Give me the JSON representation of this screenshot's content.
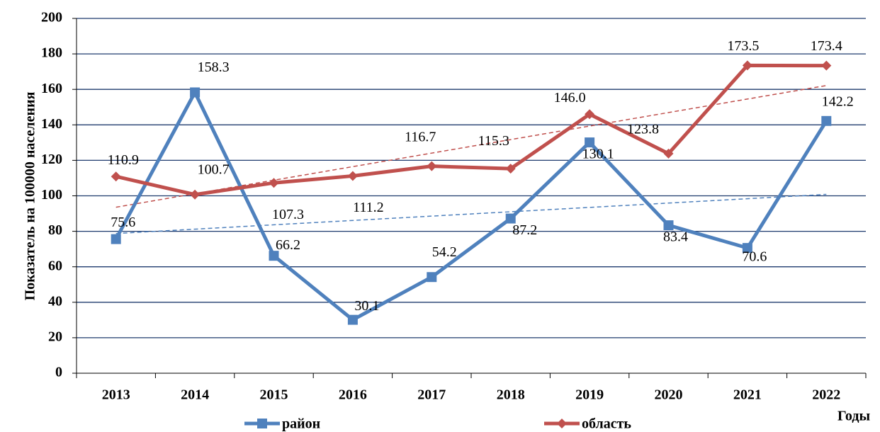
{
  "chart_data": {
    "type": "line",
    "y_label": "Показатель на 100000 населения",
    "x_label": "Годы",
    "categories": [
      "2013",
      "2014",
      "2015",
      "2016",
      "2017",
      "2018",
      "2019",
      "2020",
      "2021",
      "2022"
    ],
    "series": [
      {
        "name": "район",
        "color": "#4f81bd",
        "marker": "square",
        "values": [
          75.6,
          158.3,
          66.2,
          30.1,
          54.2,
          87.2,
          130.1,
          83.4,
          70.6,
          142.2
        ]
      },
      {
        "name": "область",
        "color": "#c0504d",
        "marker": "diamond",
        "values": [
          110.9,
          100.7,
          107.3,
          111.2,
          116.7,
          115.3,
          146.0,
          123.8,
          173.5,
          173.4
        ],
        "value_labels": [
          "110.9",
          "100.7",
          "107.3",
          "111.2",
          "116.7",
          "115.3",
          "146.0",
          "123.8",
          "173.5",
          "173.4"
        ]
      }
    ],
    "ylim": [
      0,
      200
    ],
    "yticks": [
      0,
      20,
      40,
      60,
      80,
      100,
      120,
      140,
      160,
      180,
      200
    ],
    "grid": true,
    "trendline": true,
    "legend": "bottom"
  }
}
